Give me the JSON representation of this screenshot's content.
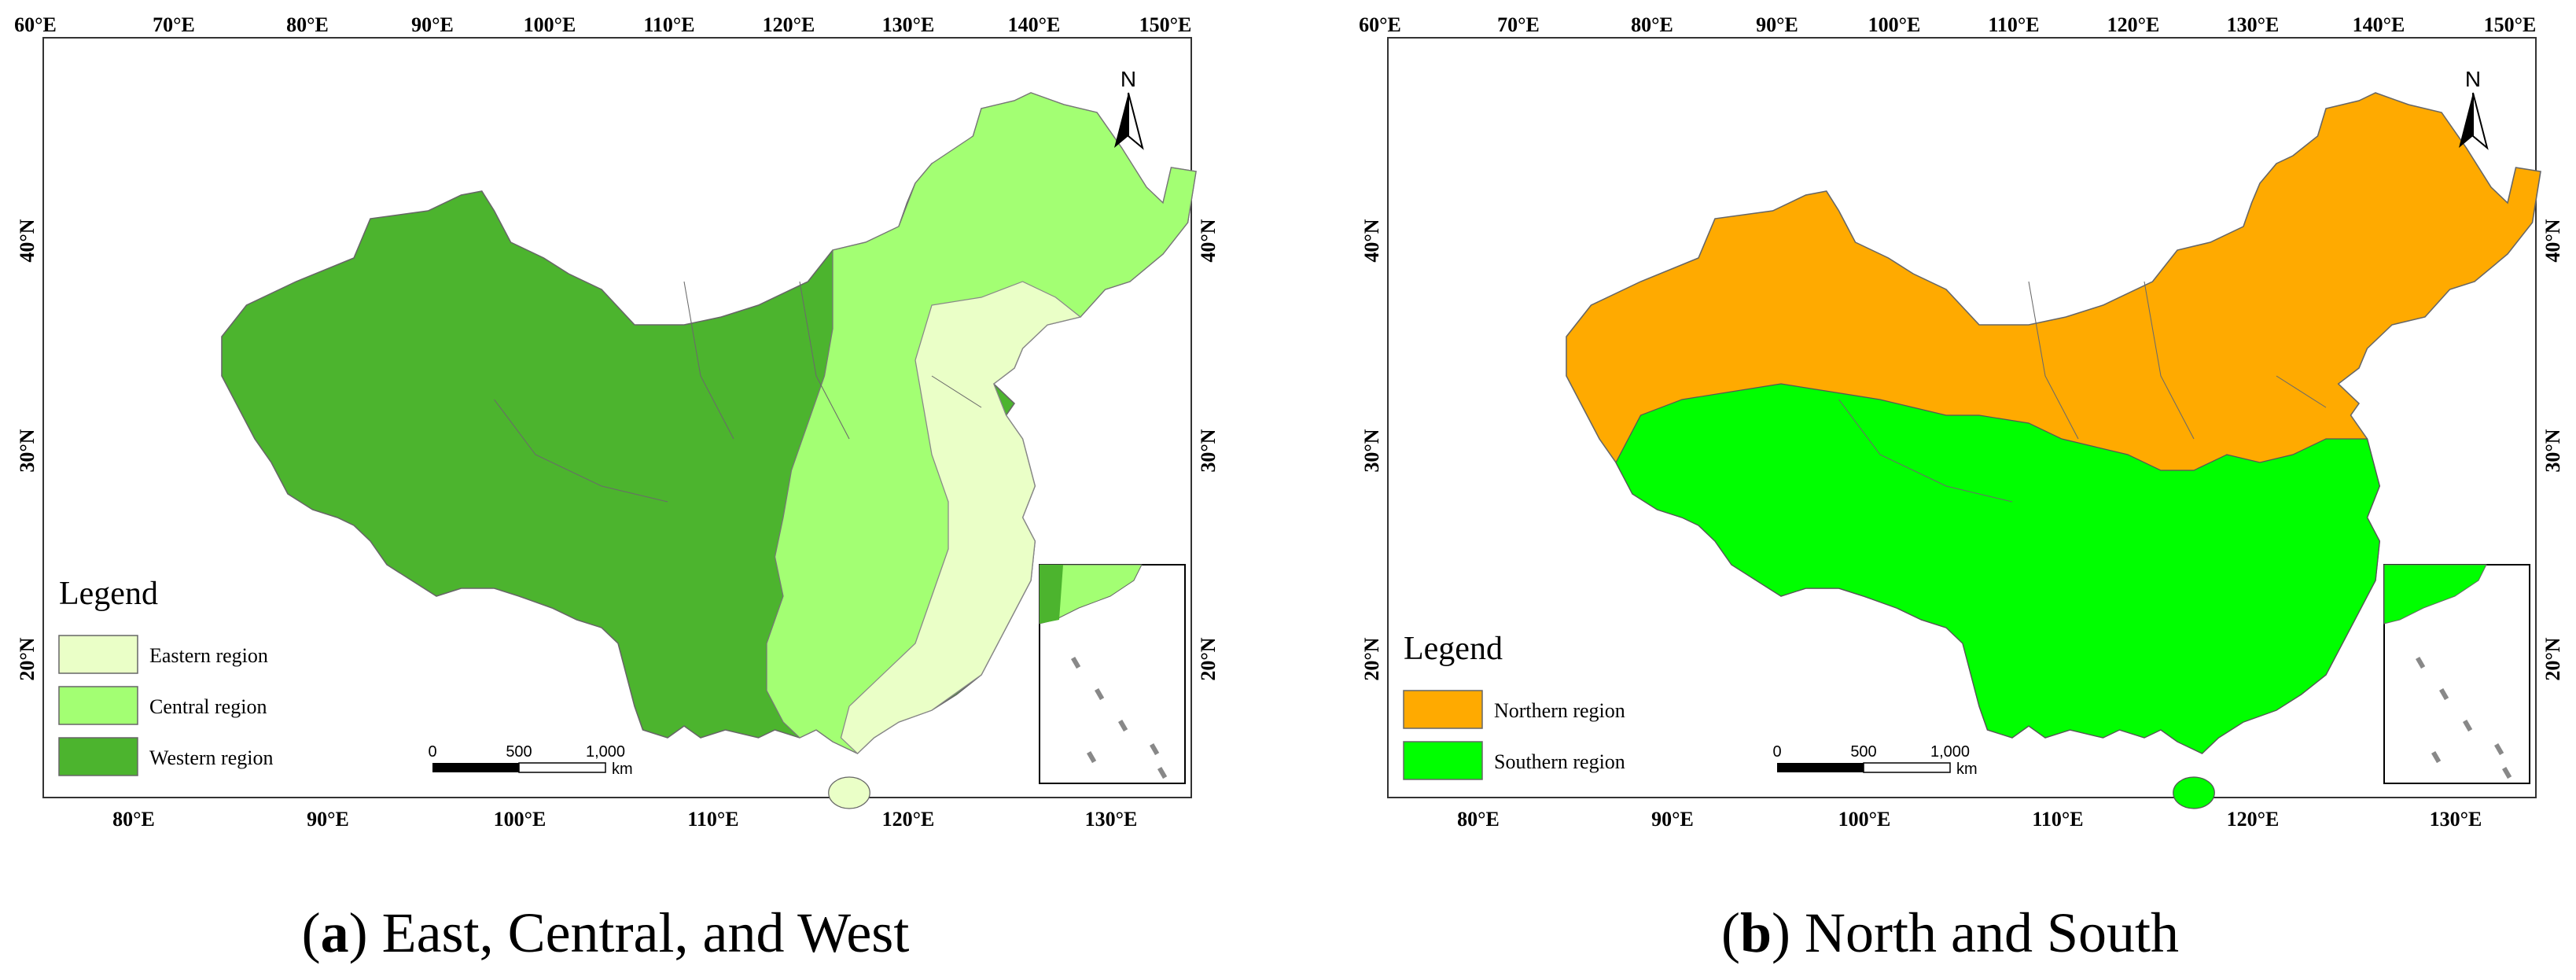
{
  "panels": [
    {
      "id": "a",
      "caption_letter": "a",
      "caption_text": ") East, Central, and West",
      "top_lon_labels": [
        "60°E",
        "70°E",
        "80°E",
        "90°E",
        "100°E",
        "110°E",
        "120°E",
        "130°E",
        "140°E",
        "150°E"
      ],
      "bottom_lon_labels": [
        "80°E",
        "90°E",
        "100°E",
        "110°E",
        "120°E",
        "130°E"
      ],
      "lat_labels": [
        "40°N",
        "30°N",
        "20°N"
      ],
      "legend_title": "Legend",
      "legend_items": [
        {
          "label": "Eastern region",
          "color": "#eaffc7"
        },
        {
          "label": "Central region",
          "color": "#a3ff73"
        },
        {
          "label": "Western region",
          "color": "#4cb42e"
        }
      ],
      "scale_labels": [
        "0",
        "500",
        "1,000"
      ],
      "scale_unit": "km",
      "north_label": "N"
    },
    {
      "id": "b",
      "caption_letter": "b",
      "caption_text": ") North and South",
      "top_lon_labels": [
        "60°E",
        "70°E",
        "80°E",
        "90°E",
        "100°E",
        "110°E",
        "120°E",
        "130°E",
        "140°E",
        "150°E"
      ],
      "bottom_lon_labels": [
        "80°E",
        "90°E",
        "100°E",
        "110°E",
        "120°E",
        "130°E"
      ],
      "lat_labels": [
        "40°N",
        "30°N",
        "20°N"
      ],
      "legend_title": "Legend",
      "legend_items": [
        {
          "label": "Northern region",
          "color": "#ffaa00"
        },
        {
          "label": "Southern region",
          "color": "#00ff00"
        }
      ],
      "scale_labels": [
        "0",
        "500",
        "1,000"
      ],
      "scale_unit": "km",
      "north_label": "N"
    }
  ]
}
